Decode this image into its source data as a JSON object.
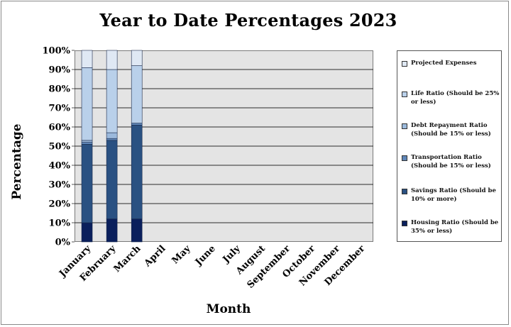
{
  "chart_data": {
    "type": "bar",
    "stacked": true,
    "title": "Year to Date Percentages 2023",
    "xlabel": "Month",
    "ylabel": "Percentage",
    "ylim": [
      0,
      100
    ],
    "yticks": [
      "0%",
      "10%",
      "20%",
      "30%",
      "40%",
      "50%",
      "60%",
      "70%",
      "80%",
      "90%",
      "100%"
    ],
    "grid": true,
    "legend_position": "right",
    "categories": [
      "January",
      "February",
      "March",
      "April",
      "May",
      "June",
      "July",
      "August",
      "September",
      "October",
      "November",
      "December"
    ],
    "series": [
      {
        "name": "Housing Ratio (Should be 35% or less)",
        "color": "#0a1f5c",
        "values": [
          10,
          12,
          12,
          null,
          null,
          null,
          null,
          null,
          null,
          null,
          null,
          null
        ]
      },
      {
        "name": "Savings Ratio (Should be 10% or more)",
        "color": "#2a5182",
        "values": [
          41,
          41,
          49,
          null,
          null,
          null,
          null,
          null,
          null,
          null,
          null,
          null
        ]
      },
      {
        "name": "Transportation Ratio (Should be 15% or less)",
        "color": "#5f86b8",
        "values": [
          1,
          1,
          1,
          null,
          null,
          null,
          null,
          null,
          null,
          null,
          null,
          null
        ]
      },
      {
        "name": "Debt Repayment Ratio (Should be 15% or less)",
        "color": "#9bb9dc",
        "values": [
          1,
          3,
          0,
          null,
          null,
          null,
          null,
          null,
          null,
          null,
          null,
          null
        ]
      },
      {
        "name": "Life Ratio (Should be 25% or less)",
        "color": "#b9d0ea",
        "values": [
          38,
          33,
          30,
          null,
          null,
          null,
          null,
          null,
          null,
          null,
          null,
          null
        ]
      },
      {
        "name": "Projected Expenses",
        "color": "#dfe8f4",
        "values": [
          9,
          10,
          8,
          null,
          null,
          null,
          null,
          null,
          null,
          null,
          null,
          null
        ]
      }
    ]
  }
}
